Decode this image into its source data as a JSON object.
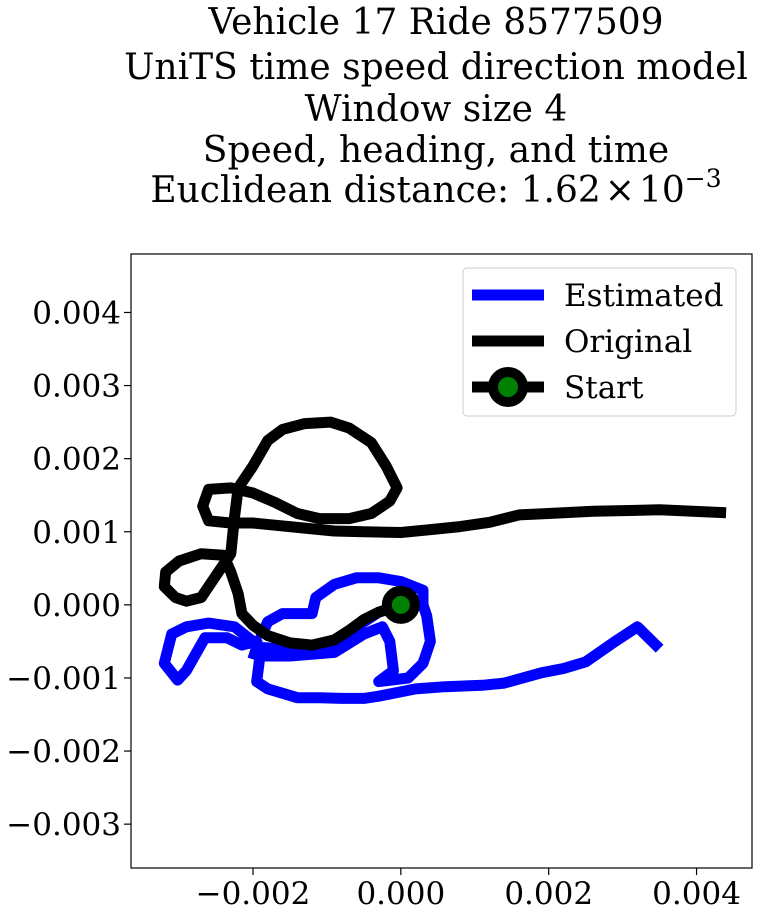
{
  "chart_data": {
    "type": "line",
    "title_lines": [
      "Vehicle 17 Ride 8577509",
      "UniTS time speed direction model",
      "Window size 4",
      "Speed, heading, and time"
    ],
    "title_metric_label": "Euclidean distance: ",
    "title_metric_mantissa": "1.62",
    "title_metric_times": "×",
    "title_metric_base": "10",
    "title_metric_exponent": "−3",
    "xlabel": "",
    "ylabel": "",
    "xlim": [
      -0.00365,
      0.00475
    ],
    "ylim": [
      -0.0036,
      0.0048
    ],
    "xticks": [
      -0.002,
      0.0,
      0.002,
      0.004
    ],
    "xtick_labels": [
      "−0.002",
      "0.000",
      "0.002",
      "0.004"
    ],
    "yticks": [
      -0.003,
      -0.002,
      -0.001,
      0.0,
      0.001,
      0.002,
      0.003,
      0.004
    ],
    "ytick_labels": [
      "−0.003",
      "−0.002",
      "−0.001",
      "0.000",
      "0.001",
      "0.002",
      "0.003",
      "0.004"
    ],
    "grid": false,
    "legend_position": "top-right",
    "colors": {
      "estimated": "#0000ff",
      "original": "#000000",
      "start_marker": "#008000"
    },
    "series": [
      {
        "name": "Estimated",
        "points": [
          [
            0.0,
            0.0
          ],
          [
            -0.0003,
            -0.0001
          ],
          [
            -0.0006,
            -0.0003
          ],
          [
            -0.0008,
            -0.0005
          ],
          [
            -0.0011,
            -0.0006
          ],
          [
            -0.0014,
            -0.00062
          ],
          [
            -0.0019,
            -0.00058
          ],
          [
            -0.00225,
            -0.0003
          ],
          [
            -0.0026,
            -0.00025
          ],
          [
            -0.0029,
            -0.0003
          ],
          [
            -0.0031,
            -0.0004
          ],
          [
            -0.0032,
            -0.0008
          ],
          [
            -0.00302,
            -0.00103
          ],
          [
            -0.0029,
            -0.0009
          ],
          [
            -0.00265,
            -0.00045
          ],
          [
            -0.00235,
            -0.00045
          ],
          [
            -0.00215,
            -0.00055
          ],
          [
            -0.00195,
            -0.0005
          ],
          [
            -0.0019,
            -0.00065
          ],
          [
            -0.00195,
            -0.00105
          ],
          [
            -0.0018,
            -0.00115
          ],
          [
            -0.0014,
            -0.00127
          ],
          [
            -0.0011,
            -0.00127
          ],
          [
            -0.0008,
            -0.00128
          ],
          [
            -0.0005,
            -0.00128
          ],
          [
            -0.0003,
            -0.00125
          ],
          [
            0.0002,
            -0.00115
          ],
          [
            0.0006,
            -0.00112
          ],
          [
            0.0011,
            -0.0011
          ],
          [
            0.0014,
            -0.00107
          ],
          [
            0.0019,
            -0.00093
          ],
          [
            0.0022,
            -0.00087
          ],
          [
            0.0025,
            -0.00078
          ],
          [
            0.0029,
            -0.0005
          ],
          [
            0.0032,
            -0.0003
          ],
          [
            0.0035,
            -0.0006
          ]
        ]
      },
      {
        "name": "Estimated",
        "points": [
          [
            -0.00205,
            -0.00065
          ],
          [
            -0.0019,
            -0.0007
          ],
          [
            -0.0015,
            -0.0007
          ],
          [
            -0.0009,
            -0.00065
          ],
          [
            -0.0005,
            -0.0004
          ],
          [
            -0.00025,
            -0.0003
          ],
          [
            -0.00015,
            -0.0005
          ],
          [
            -0.0001,
            -0.0009
          ],
          [
            -0.0003,
            -0.00105
          ],
          [
            0.0001,
            -0.001
          ],
          [
            0.0003,
            -0.0008
          ],
          [
            0.0004,
            -0.0005
          ],
          [
            0.00035,
            -0.00015
          ],
          [
            0.0003,
            0.0
          ],
          [
            0.0003,
            0.0002
          ],
          [
            0.0,
            0.00032
          ],
          [
            -0.0003,
            0.00037
          ],
          [
            -0.0006,
            0.00037
          ],
          [
            -0.0009,
            0.00028
          ],
          [
            -0.00115,
            0.0001
          ],
          [
            -0.0012,
            -0.00012
          ],
          [
            -0.0016,
            -0.00012
          ],
          [
            -0.0018,
            -0.00023
          ],
          [
            -0.0019,
            -0.00045
          ]
        ]
      },
      {
        "name": "Original",
        "points": [
          [
            0.0,
            0.0
          ],
          [
            -0.0003,
            -0.0001
          ],
          [
            -0.0005,
            -0.0002
          ],
          [
            -0.0007,
            -0.00035
          ],
          [
            -0.0009,
            -0.00048
          ],
          [
            -0.0012,
            -0.00055
          ],
          [
            -0.0015,
            -0.00052
          ],
          [
            -0.0018,
            -0.00042
          ],
          [
            -0.002,
            -0.00028
          ],
          [
            -0.00215,
            -0.00012
          ],
          [
            -0.0022,
            0.00015
          ],
          [
            -0.0023,
            0.00045
          ],
          [
            -0.0024,
            0.00068
          ],
          [
            -0.0027,
            0.0007
          ],
          [
            -0.003,
            0.0006
          ],
          [
            -0.00318,
            0.00045
          ],
          [
            -0.0032,
            0.00025
          ],
          [
            -0.00305,
            0.0001
          ],
          [
            -0.0029,
            5e-05
          ],
          [
            -0.0027,
            0.0001
          ],
          [
            -0.0025,
            0.0004
          ],
          [
            -0.0023,
            0.0007
          ],
          [
            -0.00225,
            0.0012
          ],
          [
            -0.0022,
            0.0016
          ],
          [
            -0.002,
            0.0019
          ],
          [
            -0.0018,
            0.00225
          ],
          [
            -0.0016,
            0.0024
          ],
          [
            -0.0013,
            0.00248
          ],
          [
            -0.00095,
            0.0025
          ],
          [
            -0.0007,
            0.00242
          ],
          [
            -0.0004,
            0.00222
          ],
          [
            -0.0002,
            0.0019
          ],
          [
            -5e-05,
            0.0016
          ],
          [
            -0.00015,
            0.00142
          ],
          [
            -0.0004,
            0.00125
          ],
          [
            -0.0007,
            0.00118
          ],
          [
            -0.0011,
            0.00118
          ],
          [
            -0.0014,
            0.00125
          ],
          [
            -0.0017,
            0.0014
          ],
          [
            -0.002,
            0.00153
          ],
          [
            -0.0023,
            0.0016
          ],
          [
            -0.0026,
            0.00158
          ],
          [
            -0.00268,
            0.00135
          ],
          [
            -0.0026,
            0.00115
          ],
          [
            -0.0023,
            0.00112
          ],
          [
            -0.002,
            0.00112
          ],
          [
            -0.0013,
            0.00105
          ],
          [
            -0.0009,
            0.00101
          ],
          [
            -0.0005,
            0.001
          ],
          [
            0.0,
            0.00099
          ],
          [
            0.0004,
            0.00103
          ],
          [
            0.0008,
            0.00107
          ],
          [
            0.0012,
            0.00113
          ],
          [
            0.0016,
            0.00123
          ],
          [
            0.002,
            0.00125
          ],
          [
            0.0026,
            0.00128
          ],
          [
            0.0035,
            0.0013
          ],
          [
            0.0044,
            0.00126
          ]
        ]
      },
      {
        "name": "Start",
        "points": [
          [
            0.0,
            0.0
          ]
        ]
      }
    ],
    "legend": [
      "Estimated",
      "Original",
      "Start"
    ]
  }
}
